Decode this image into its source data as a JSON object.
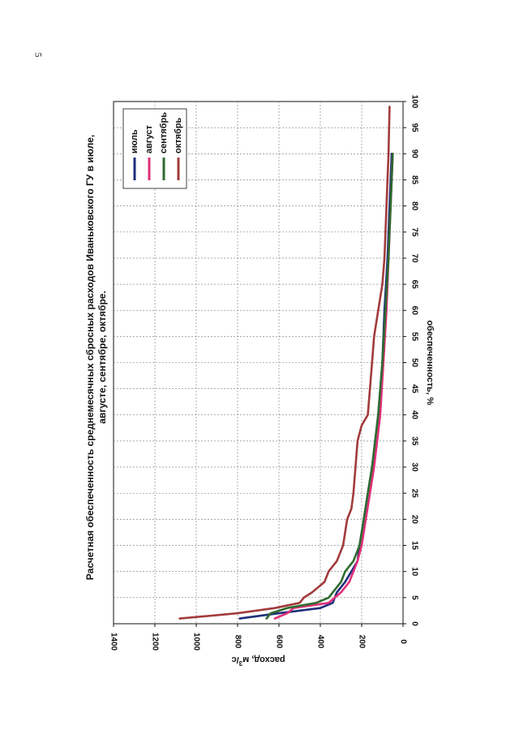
{
  "page_number": "5",
  "chart_data": {
    "type": "line",
    "title": "Расчетная обеспеченность среднемесячных сбросных расходов Иваньковского ГУ в июле,",
    "subtitle": "августе, сентябре, октябре.",
    "xlabel": "обеспеченность, %",
    "ylabel": "расход, м³/с",
    "ylabel_base": "расход, м",
    "ylabel_sup": "3",
    "ylabel_tail": "/с",
    "xlim": [
      0,
      100
    ],
    "ylim": [
      0,
      1400
    ],
    "x_ticks": [
      "0",
      "5",
      "10",
      "15",
      "20",
      "25",
      "30",
      "35",
      "40",
      "45",
      "50",
      "55",
      "60",
      "65",
      "70",
      "75",
      "80",
      "85",
      "90",
      "95",
      "100"
    ],
    "y_ticks": [
      "0",
      "200",
      "400",
      "600",
      "800",
      "1000",
      "1200",
      "1400"
    ],
    "grid": true,
    "legend_position": "top-right",
    "series": [
      {
        "name": "июль",
        "color": "#1f2f7a",
        "x": [
          1,
          2,
          3,
          4,
          6,
          8,
          10,
          12,
          15,
          20,
          25,
          30,
          40,
          50,
          60,
          70,
          80,
          90
        ],
        "y": [
          790,
          600,
          400,
          340,
          320,
          280,
          250,
          220,
          210,
          190,
          170,
          150,
          120,
          100,
          90,
          75,
          65,
          55
        ]
      },
      {
        "name": "август",
        "color": "#e0307a",
        "x": [
          1,
          2,
          3,
          4,
          6,
          8,
          10,
          12,
          15,
          20,
          25,
          30,
          40,
          50,
          60,
          70,
          80,
          90
        ],
        "y": [
          620,
          560,
          530,
          360,
          300,
          260,
          240,
          220,
          200,
          180,
          160,
          140,
          110,
          95,
          80,
          70,
          60,
          50
        ]
      },
      {
        "name": "сентябрь",
        "color": "#2e6b2e",
        "x": [
          1,
          2,
          3,
          4,
          5,
          8,
          10,
          12,
          15,
          20,
          25,
          30,
          40,
          50,
          60,
          70,
          80,
          90
        ],
        "y": [
          660,
          640,
          560,
          420,
          360,
          300,
          280,
          240,
          210,
          190,
          170,
          150,
          120,
          100,
          85,
          70,
          60,
          50
        ]
      },
      {
        "name": "октябрь",
        "color": "#a23b3b",
        "x": [
          1,
          2,
          3,
          4,
          5,
          6,
          8,
          10,
          12,
          15,
          20,
          22,
          25,
          30,
          35,
          38,
          40,
          45,
          50,
          55,
          60,
          65,
          70,
          80,
          90,
          99
        ],
        "y": [
          1080,
          800,
          620,
          500,
          480,
          440,
          380,
          360,
          320,
          290,
          270,
          250,
          240,
          230,
          220,
          200,
          170,
          160,
          150,
          140,
          120,
          100,
          90,
          80,
          70,
          65
        ]
      }
    ]
  }
}
